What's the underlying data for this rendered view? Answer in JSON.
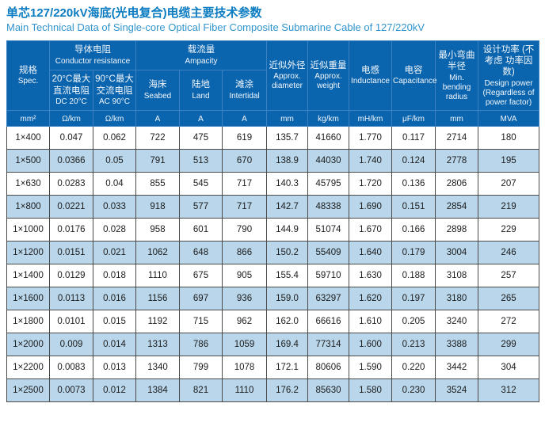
{
  "page": {
    "title_zh": "单芯127/220kV海底(光电复合)电缆主要技术参数",
    "title_en": "Main Technical Data of Single-core Optical Fiber Composite Submarine Cable of 127/220kV"
  },
  "colors": {
    "header_bg": "#0a64ae",
    "header_divider": "#3b82c2",
    "stripe_bg": "#b9d6ea",
    "cell_border": "#4a4a4a",
    "title_zh": "#0b7cc1",
    "title_en": "#3095ce"
  },
  "table": {
    "header": {
      "spec": {
        "zh": "规格",
        "en": "Spec.",
        "unit": "mm²"
      },
      "groups": [
        {
          "zh": "导体电阻",
          "en": "Conductor resistance",
          "children": [
            {
              "zh": "20°C最大 直流电阻",
              "en": "DC 20°C",
              "unit": "Ω/km"
            },
            {
              "zh": "90°C最大 交流电阻",
              "en": "AC 90°C",
              "unit": "Ω/km"
            }
          ]
        },
        {
          "zh": "载流量",
          "en": "Ampacity",
          "children": [
            {
              "zh": "海床",
              "en": "Seabed",
              "unit": "A"
            },
            {
              "zh": "陆地",
              "en": "Land",
              "unit": "A"
            },
            {
              "zh": "滩涂",
              "en": "Intertidal",
              "unit": "A"
            }
          ]
        }
      ],
      "singles": [
        {
          "zh": "近似外径",
          "en": "Approx. diameter",
          "unit": "mm"
        },
        {
          "zh": "近似重量",
          "en": "Approx. weight",
          "unit": "kg/km"
        },
        {
          "zh": "电感",
          "en": "Inductance",
          "unit": "mH/km"
        },
        {
          "zh": "电容",
          "en": "Capacitance",
          "unit": "μF/km"
        },
        {
          "zh": "最小弯曲 半径",
          "en": "Min. bending radius",
          "unit": "mm"
        },
        {
          "zh": "设计功率 (不考虑 功率因数)",
          "en": "Design power (Regardless of power factor)",
          "unit": "MVA"
        }
      ]
    },
    "rows": [
      [
        "1×400",
        "0.047",
        "0.062",
        "722",
        "475",
        "619",
        "135.7",
        "41660",
        "1.770",
        "0.117",
        "2714",
        "180"
      ],
      [
        "1×500",
        "0.0366",
        "0.05",
        "791",
        "513",
        "670",
        "138.9",
        "44030",
        "1.740",
        "0.124",
        "2778",
        "195"
      ],
      [
        "1×630",
        "0.0283",
        "0.04",
        "855",
        "545",
        "717",
        "140.3",
        "45795",
        "1.720",
        "0.136",
        "2806",
        "207"
      ],
      [
        "1×800",
        "0.0221",
        "0.033",
        "918",
        "577",
        "717",
        "142.7",
        "48338",
        "1.690",
        "0.151",
        "2854",
        "219"
      ],
      [
        "1×1000",
        "0.0176",
        "0.028",
        "958",
        "601",
        "790",
        "144.9",
        "51074",
        "1.670",
        "0.166",
        "2898",
        "229"
      ],
      [
        "1×1200",
        "0.0151",
        "0.021",
        "1062",
        "648",
        "866",
        "150.2",
        "55409",
        "1.640",
        "0.179",
        "3004",
        "246"
      ],
      [
        "1×1400",
        "0.0129",
        "0.018",
        "1110",
        "675",
        "905",
        "155.4",
        "59710",
        "1.630",
        "0.188",
        "3108",
        "257"
      ],
      [
        "1×1600",
        "0.0113",
        "0.016",
        "1156",
        "697",
        "936",
        "159.0",
        "63297",
        "1.620",
        "0.197",
        "3180",
        "265"
      ],
      [
        "1×1800",
        "0.0101",
        "0.015",
        "1192",
        "715",
        "962",
        "162.0",
        "66616",
        "1.610",
        "0.205",
        "3240",
        "272"
      ],
      [
        "1×2000",
        "0.009",
        "0.014",
        "1313",
        "786",
        "1059",
        "169.4",
        "77314",
        "1.600",
        "0.213",
        "3388",
        "299"
      ],
      [
        "1×2200",
        "0.0083",
        "0.013",
        "1340",
        "799",
        "1078",
        "172.1",
        "80606",
        "1.590",
        "0.220",
        "3442",
        "304"
      ],
      [
        "1×2500",
        "0.0073",
        "0.012",
        "1384",
        "821",
        "1110",
        "176.2",
        "85630",
        "1.580",
        "0.230",
        "3524",
        "312"
      ]
    ]
  }
}
